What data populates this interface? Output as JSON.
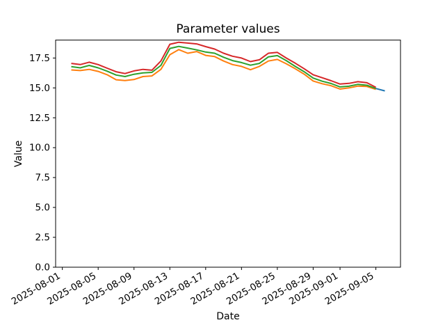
{
  "chart_data": {
    "type": "line",
    "title": "Parameter values",
    "xlabel": "Date",
    "ylabel": "Value",
    "grid": false,
    "legend": "none",
    "background_color": "#ffffff",
    "axis_color": "#000000",
    "line_width": 2,
    "ylim": [
      0,
      19
    ],
    "x_origin_date": "2025-08-01",
    "xlim_days": [
      -0.75,
      37.75
    ],
    "y_tick_values": [
      0,
      2.5,
      5,
      7.5,
      10,
      12.5,
      15,
      17.5
    ],
    "y_tick_labels": [
      "0.0",
      "2.5",
      "5.0",
      "7.5",
      "10.0",
      "12.5",
      "15.0",
      "17.5"
    ],
    "x_ticks": [
      "2025-08-01",
      "2025-08-05",
      "2025-08-09",
      "2025-08-13",
      "2025-08-17",
      "2025-08-21",
      "2025-08-25",
      "2025-08-29",
      "2025-09-01",
      "2025-09-05"
    ],
    "dates": [
      "2025-08-02",
      "2025-08-03",
      "2025-08-04",
      "2025-08-05",
      "2025-08-06",
      "2025-08-07",
      "2025-08-08",
      "2025-08-09",
      "2025-08-10",
      "2025-08-11",
      "2025-08-12",
      "2025-08-13",
      "2025-08-14",
      "2025-08-15",
      "2025-08-16",
      "2025-08-17",
      "2025-08-18",
      "2025-08-19",
      "2025-08-20",
      "2025-08-21",
      "2025-08-22",
      "2025-08-23",
      "2025-08-24",
      "2025-08-25",
      "2025-08-26",
      "2025-08-27",
      "2025-08-28",
      "2025-08-29",
      "2025-08-30",
      "2025-08-31",
      "2025-09-01",
      "2025-09-02",
      "2025-09-03",
      "2025-09-04",
      "2025-09-05"
    ],
    "series": [
      {
        "name": "orange",
        "color": "#ff7f0e",
        "values": [
          16.5,
          16.45,
          16.55,
          16.38,
          16.1,
          15.68,
          15.62,
          15.7,
          15.95,
          16.0,
          16.55,
          17.78,
          18.2,
          17.9,
          18.04,
          17.72,
          17.62,
          17.25,
          16.95,
          16.8,
          16.52,
          16.8,
          17.25,
          17.38,
          17.02,
          16.6,
          16.15,
          15.58,
          15.35,
          15.18,
          14.9,
          15.0,
          15.15,
          15.12,
          14.88
        ]
      },
      {
        "name": "green",
        "color": "#2ca02c",
        "values": [
          16.78,
          16.68,
          16.88,
          16.68,
          16.4,
          16.08,
          15.95,
          16.14,
          16.26,
          16.3,
          16.88,
          18.3,
          18.47,
          18.33,
          18.18,
          18.0,
          17.9,
          17.56,
          17.28,
          17.12,
          16.9,
          17.05,
          17.6,
          17.7,
          17.28,
          16.8,
          16.35,
          15.82,
          15.56,
          15.37,
          15.08,
          15.14,
          15.3,
          15.22,
          14.95
        ]
      },
      {
        "name": "red",
        "color": "#d62728",
        "values": [
          17.05,
          16.95,
          17.15,
          16.95,
          16.65,
          16.35,
          16.2,
          16.42,
          16.55,
          16.48,
          17.25,
          18.65,
          18.82,
          18.75,
          18.68,
          18.45,
          18.25,
          17.9,
          17.65,
          17.5,
          17.2,
          17.35,
          17.9,
          17.97,
          17.5,
          17.07,
          16.6,
          16.1,
          15.85,
          15.6,
          15.32,
          15.38,
          15.52,
          15.43,
          15.05
        ]
      },
      {
        "name": "blue",
        "color": "#1f77b4",
        "dates": [
          "2025-09-05",
          "2025-09-06"
        ],
        "values": [
          14.95,
          14.75
        ]
      }
    ]
  }
}
